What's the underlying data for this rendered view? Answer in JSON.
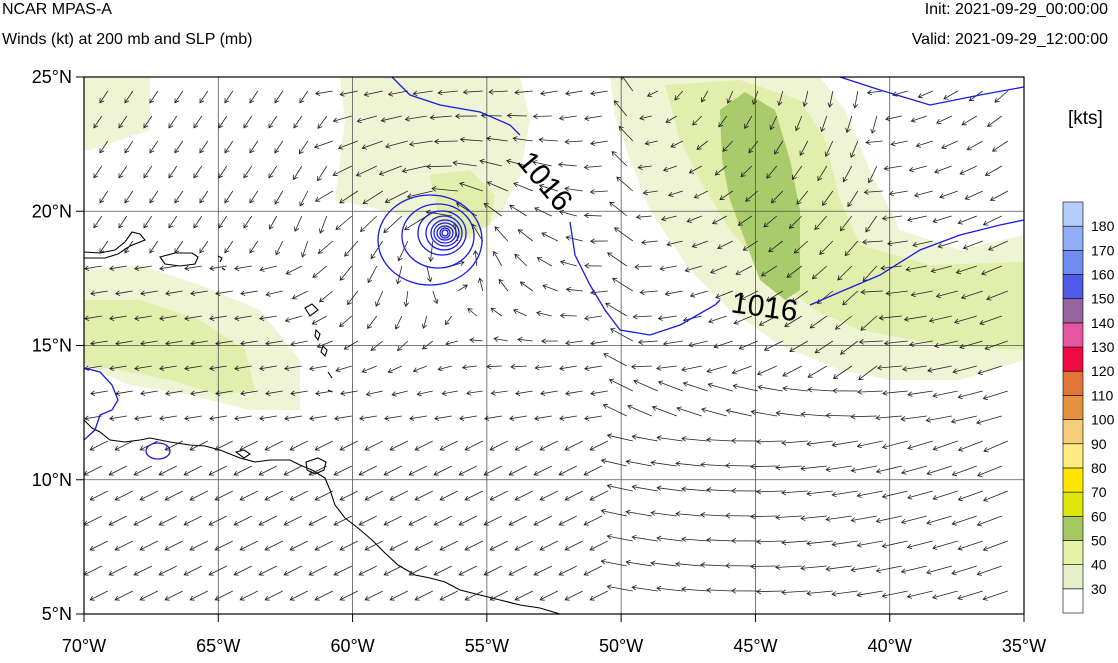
{
  "header": {
    "model": "NCAR MPAS-A",
    "field": "Winds (kt) at 200 mb and SLP (mb)",
    "init": "Init: 2021-09-29_00:00:00",
    "valid": "Valid: 2021-09-29_12:00:00"
  },
  "map": {
    "lon_range": [
      -70,
      -35
    ],
    "lat_range": [
      5,
      25
    ],
    "x_ticks": [
      "70°W",
      "65°W",
      "60°W",
      "55°W",
      "50°W",
      "45°W",
      "40°W",
      "35°W"
    ],
    "y_ticks": [
      "25°N",
      "20°N",
      "15°N",
      "10°N",
      "5°N"
    ],
    "contour_labels": [
      "1016",
      "1016"
    ],
    "contour_color": "#1a1ae6",
    "coast_color": "#000000"
  },
  "colorbar": {
    "units": "[kts]",
    "levels": [
      "30",
      "40",
      "50",
      "60",
      "70",
      "80",
      "90",
      "100",
      "110",
      "120",
      "130",
      "140",
      "150",
      "160",
      "170",
      "180"
    ],
    "colors": [
      "#ffffff",
      "#e6f0c8",
      "#e3f2a4",
      "#a6c864",
      "#dde60a",
      "#ffe600",
      "#ffeb80",
      "#f5cd7a",
      "#e8913c",
      "#e07636",
      "#f00a41",
      "#e655a0",
      "#96649f",
      "#505ae8",
      "#6e8cf0",
      "#90aef5",
      "#b4cdfa"
    ]
  }
}
